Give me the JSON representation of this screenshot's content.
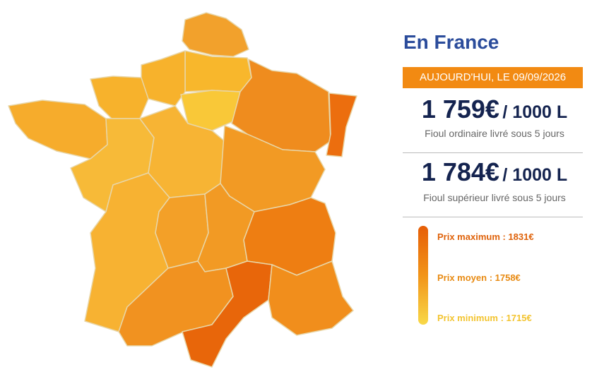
{
  "heading": "En France",
  "date_banner": "AUJOURD'HUI, LE 09/09/2026",
  "prices": [
    {
      "amount": "1 759€",
      "unit": "/ 1000 L",
      "caption": "Fioul ordinaire livré sous 5 jours"
    },
    {
      "amount": "1 784€",
      "unit": "/ 1000 L",
      "caption": "Fioul supérieur livré sous 5 jours"
    }
  ],
  "legend": [
    "Prix maximum : 1831€",
    "Prix moyen : 1758€",
    "Prix minimum : 1715€"
  ]
}
